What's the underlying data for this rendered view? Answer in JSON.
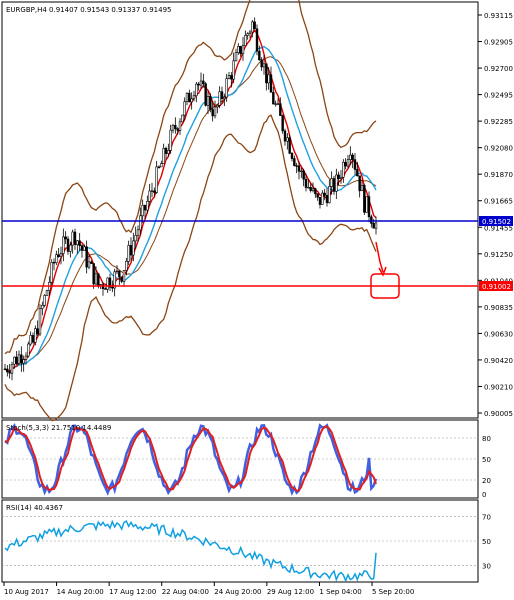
{
  "main": {
    "header": "EURGBP,H4  0.91407 0.91543 0.91337 0.91495",
    "price_ticks": [
      "0.93115",
      "0.92905",
      "0.92700",
      "0.92495",
      "0.92285",
      "0.92080",
      "0.91870",
      "0.91665",
      "0.91455",
      "0.91250",
      "0.91040",
      "0.90835",
      "0.90630",
      "0.90420",
      "0.90210",
      "0.90005"
    ],
    "hline_blue": {
      "label": "0.91502",
      "value": 0.91502,
      "color": "#0000cc"
    },
    "hline_red": {
      "label": "0.91002",
      "value": 0.91002,
      "color": "#ff0000"
    },
    "target_box_color": "#ff0000"
  },
  "stoch": {
    "header": "Stoch(5,3,3) 21.7510 14.4489",
    "levels": [
      "80",
      "50",
      "20",
      "0"
    ],
    "k_color": "#4060e0",
    "d_color": "#e02020"
  },
  "rsi": {
    "header": "RSI(14) 40.4367",
    "levels": [
      "70",
      "50",
      "30"
    ],
    "line_color": "#10a0e0"
  },
  "time_axis": [
    "10 Aug 2017",
    "14 Aug 20:00",
    "17 Aug 12:00",
    "22 Aug 04:00",
    "24 Aug 20:00",
    "29 Aug 12:00",
    "1 Sep 04:00",
    "5 Sep 20:00"
  ],
  "colors": {
    "candle": "#000000",
    "bollinger": "#8b4513",
    "ma_fast": "#e00000",
    "ma_slow": "#20a0e0"
  }
}
